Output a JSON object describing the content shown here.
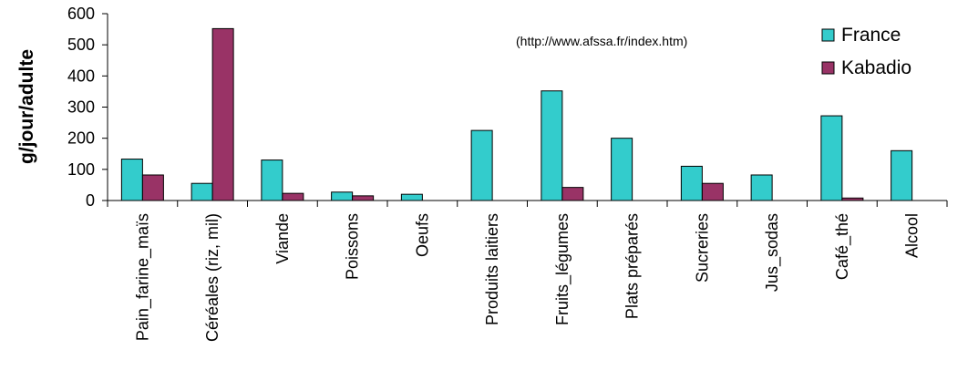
{
  "chart_data": {
    "type": "bar",
    "ylabel": "g/jour/adulte",
    "xlabel": "",
    "ylim": [
      0,
      600
    ],
    "yticks": [
      0,
      100,
      200,
      300,
      400,
      500,
      600
    ],
    "categories": [
      "Pain_farine_maïs",
      "Céréales (riz, mil)",
      "Viande",
      "Poissons",
      "Oeufs",
      "Produits laitiers",
      "Fruits_légumes",
      "Plats préparés",
      "Sucreries",
      "Jus_sodas",
      "Café_thé",
      "Alcool"
    ],
    "series": [
      {
        "name": "France",
        "color": "#33CCCC",
        "values": [
          133,
          55,
          130,
          27,
          20,
          225,
          352,
          200,
          110,
          82,
          272,
          160
        ]
      },
      {
        "name": "Kabadio",
        "color": "#993366",
        "values": [
          82,
          552,
          23,
          15,
          0,
          0,
          42,
          0,
          55,
          0,
          8,
          0
        ]
      }
    ],
    "annotation": "(http://www.afssa.fr/index.htm)",
    "legend_position": "top-right",
    "grid": false
  }
}
